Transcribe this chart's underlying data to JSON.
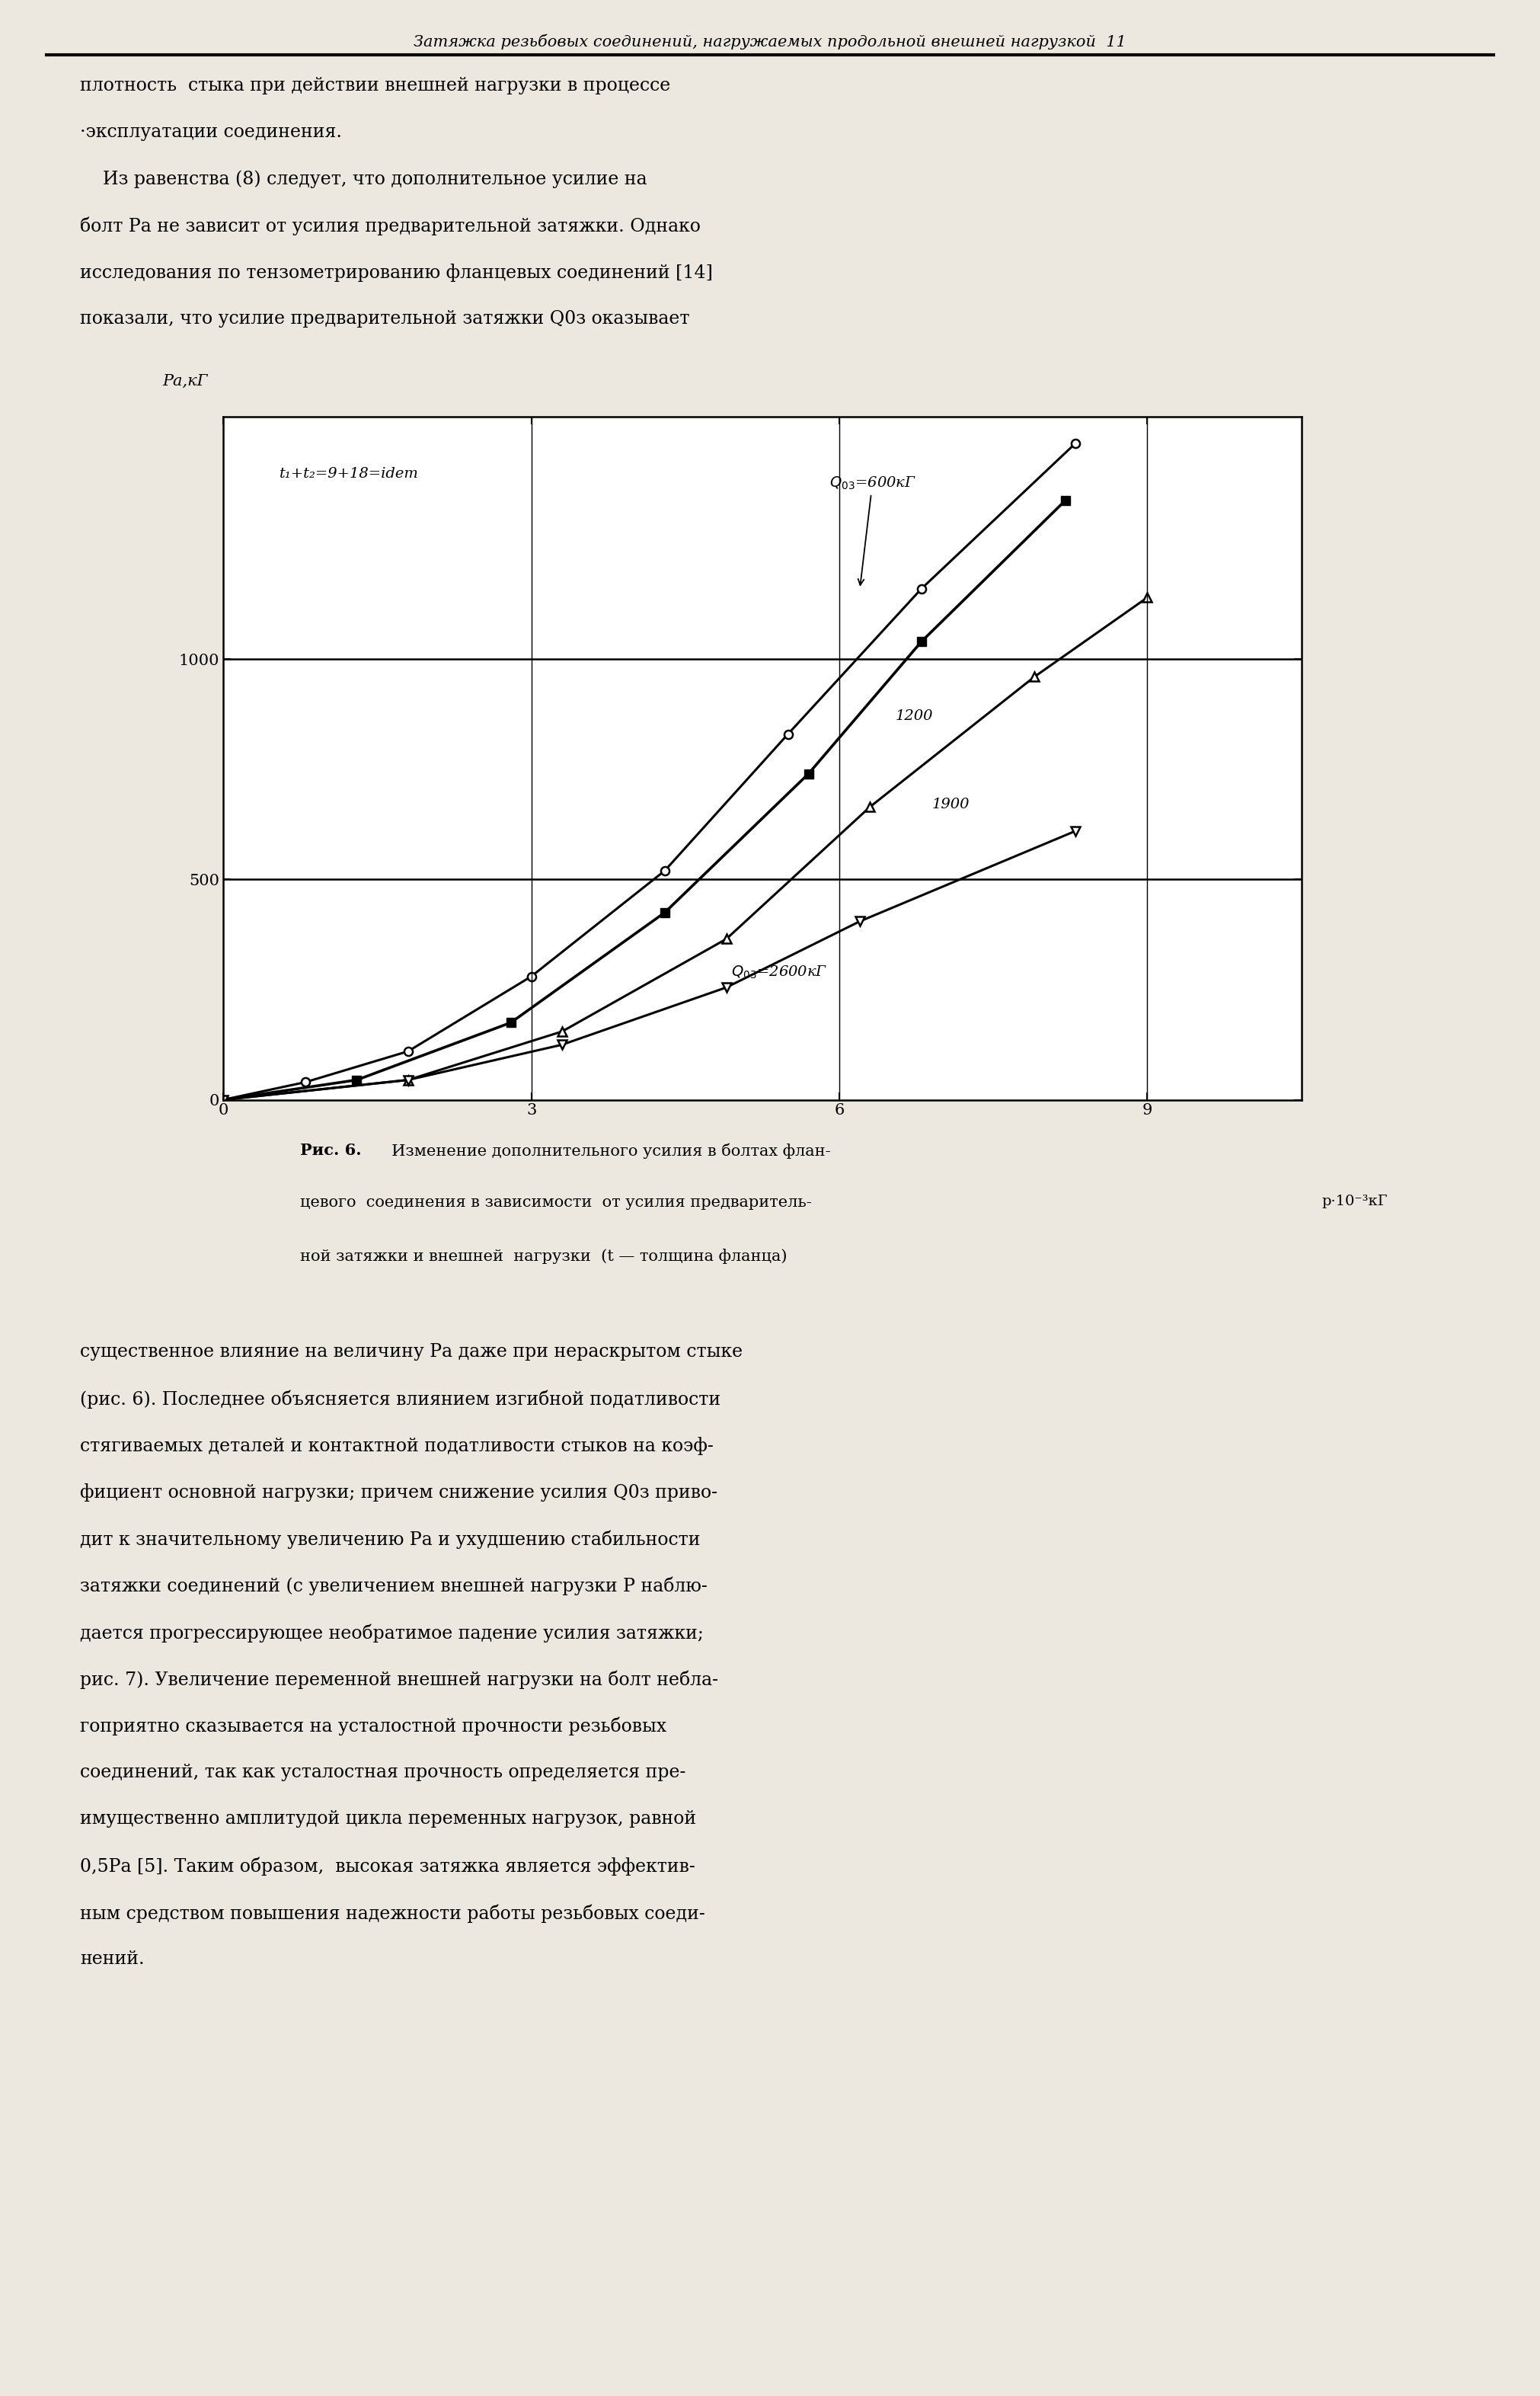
{
  "page_header": "Затяжка резьбовых соединений, нагружаемых продольной внешней нагрузкой  11",
  "text_top": [
    "плотность  стыка при действии внешней нагрузки в процессе",
    "·эксплуатации соединения.",
    "    Из равенства (8) следует, что дополнительное усилие на",
    "болт Рa не зависит от усилия предварительной затяжки. Однако",
    "исследования по тензометрированию фланцевых соединений [14]",
    "показали, что усилие предварительной затяжки Q0з оказывает"
  ],
  "ylabel": "Рa,кГ",
  "xlabel": "р·10⁻³кГ",
  "xlim": [
    0,
    10.5
  ],
  "ylim": [
    0,
    1550
  ],
  "xticks": [
    0,
    3,
    6,
    9
  ],
  "yticks": [
    500,
    1000
  ],
  "chart_annotation": "t₁+t₂=9+18=idem",
  "label_600": "Qаз=600кГ",
  "label_1200": "1200",
  "label_1900": "1900",
  "label_2600": "Qаз=2600кГ",
  "caption_bold": "Рис. 6.",
  "caption_l1": "  Изменение дополнительного усилия в болтах флан-",
  "caption_l2": "цевого  соединения в зависимости  от усилия предваритель-",
  "caption_l3": "ной затяжки и внешней  нагрузки  (t — толщина фланца)",
  "text_bottom": [
    "существенное влияние на величину Рa даже при нераскрытом стыке",
    "(рис. 6). Последнее объясняется влиянием изгибной податливости",
    "стягиваемых деталей и контактной податливости стыков на коэф-",
    "фициент основной нагрузки; причем снижение усилия Q0з приво-",
    "дит к значительному увеличению Рa и ухудшению стабильности",
    "затяжки соединений (с увеличением внешней нагрузки P наблю-",
    "дается прогрессирующее необратимое падение усилия затяжки;",
    "рис. 7). Увеличение переменной внешней нагрузки на болт небла-",
    "гоприятно сказывается на усталостной прочности резьбовых",
    "соединений, так как усталостная прочность определяется пре-",
    "имущественно амплитудой цикла переменных нагрузок, равной",
    "0,5Рa [5]. Таким образом,  высокая затяжка является эффектив-",
    "ным средством повышения надежности работы резьбовых соеди-",
    "нений."
  ],
  "curve600_x": [
    0,
    0.8,
    1.8,
    3.0,
    4.3,
    5.5,
    6.8,
    8.3
  ],
  "curve600_y": [
    0,
    40,
    110,
    280,
    520,
    830,
    1160,
    1490
  ],
  "curve1200_x": [
    0,
    1.3,
    2.8,
    4.3,
    5.7,
    6.8,
    8.2
  ],
  "curve1200_y": [
    0,
    45,
    175,
    425,
    740,
    1040,
    1360
  ],
  "curve1900_x": [
    0,
    1.8,
    3.3,
    4.9,
    6.3,
    7.9,
    9.0
  ],
  "curve1900_y": [
    0,
    45,
    155,
    365,
    665,
    960,
    1140
  ],
  "curve2600_x": [
    0,
    1.8,
    3.3,
    4.9,
    6.2,
    8.3
  ],
  "curve2600_y": [
    0,
    45,
    125,
    255,
    405,
    610
  ],
  "bg_color": "#ede8df",
  "plot_bg": "#ffffff"
}
